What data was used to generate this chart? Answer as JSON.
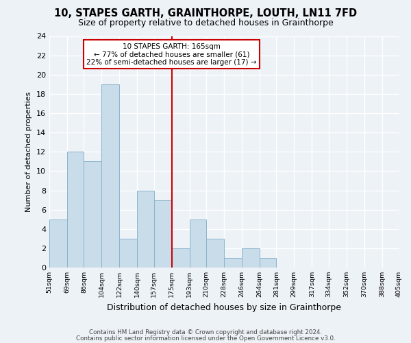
{
  "title": "10, STAPES GARTH, GRAINTHORPE, LOUTH, LN11 7FD",
  "subtitle": "Size of property relative to detached houses in Grainthorpe",
  "xlabel": "Distribution of detached houses by size in Grainthorpe",
  "ylabel": "Number of detached properties",
  "bar_values": [
    5,
    12,
    11,
    19,
    3,
    8,
    7,
    2,
    5,
    3,
    1,
    2,
    1,
    0,
    0,
    0,
    0,
    0,
    0,
    0
  ],
  "bin_edges": [
    51,
    69,
    86,
    104,
    122,
    140,
    157,
    175,
    193,
    210,
    228,
    246,
    264,
    281,
    299,
    317,
    334,
    352,
    370,
    388,
    405
  ],
  "tick_labels": [
    "51sqm",
    "69sqm",
    "86sqm",
    "104sqm",
    "122sqm",
    "140sqm",
    "157sqm",
    "175sqm",
    "193sqm",
    "210sqm",
    "228sqm",
    "246sqm",
    "264sqm",
    "281sqm",
    "299sqm",
    "317sqm",
    "334sqm",
    "352sqm",
    "370sqm",
    "388sqm",
    "405sqm"
  ],
  "bar_color": "#c9dcea",
  "bar_edge_color": "#8ab4cc",
  "vline_x_bin": 6,
  "vline_color": "#cc0000",
  "annotation_text": "10 STAPES GARTH: 165sqm\n← 77% of detached houses are smaller (61)\n22% of semi-detached houses are larger (17) →",
  "annotation_box_color": "#ffffff",
  "annotation_border_color": "#cc0000",
  "ylim": [
    0,
    24
  ],
  "yticks": [
    0,
    2,
    4,
    6,
    8,
    10,
    12,
    14,
    16,
    18,
    20,
    22,
    24
  ],
  "footer_line1": "Contains HM Land Registry data © Crown copyright and database right 2024.",
  "footer_line2": "Contains public sector information licensed under the Open Government Licence v3.0.",
  "bg_color": "#edf2f7",
  "grid_color": "#ffffff",
  "title_fontsize": 10.5,
  "subtitle_fontsize": 9
}
